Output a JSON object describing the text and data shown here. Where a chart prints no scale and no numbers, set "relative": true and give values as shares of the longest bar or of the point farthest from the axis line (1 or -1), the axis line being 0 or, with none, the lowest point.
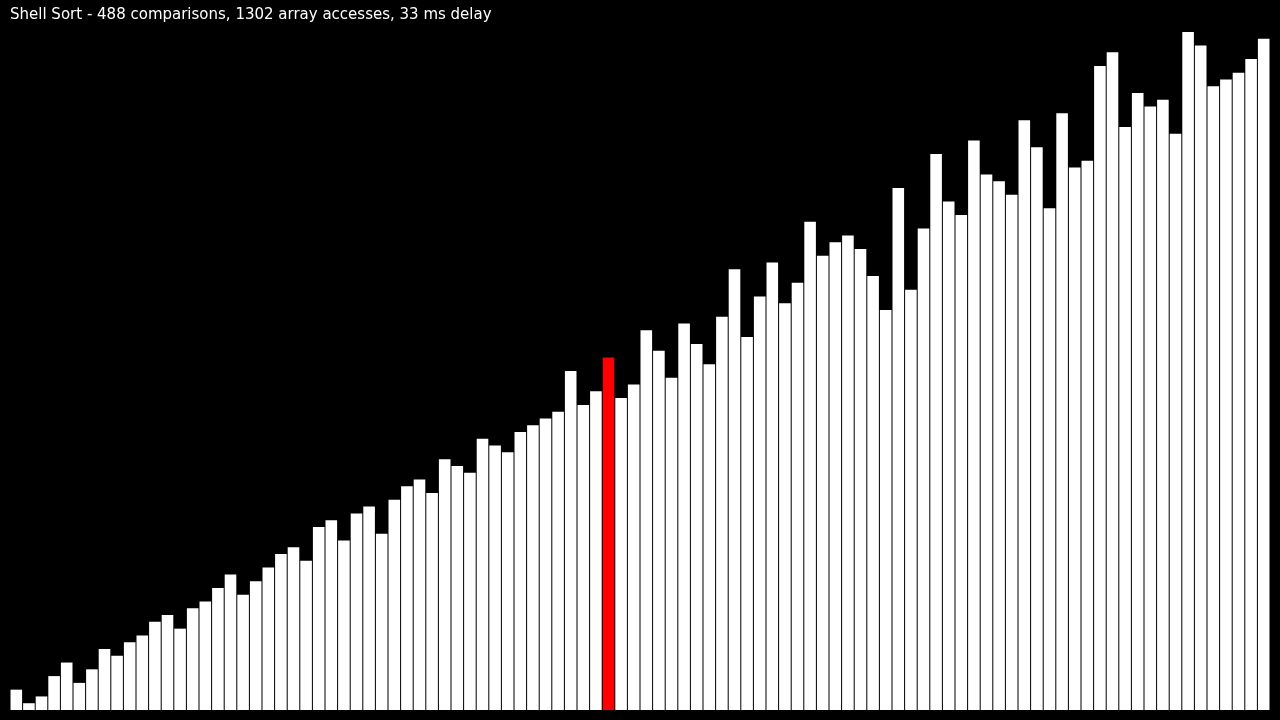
{
  "chart_data": {
    "type": "bar",
    "title": "Shell Sort - 488 comparisons, 1302 array accesses, 33 ms delay",
    "relative": true,
    "categories": [
      null,
      null,
      null,
      null,
      null,
      null,
      null,
      null,
      null,
      null,
      null,
      null,
      null,
      null,
      null,
      null,
      null,
      null,
      null,
      null,
      null,
      null,
      null,
      null,
      null,
      null,
      null,
      null,
      null,
      null,
      null,
      null,
      null,
      null,
      null,
      null,
      null,
      null,
      null,
      null,
      null,
      null,
      null,
      null,
      null,
      null,
      null,
      null,
      null,
      null,
      null,
      null,
      null,
      null,
      null,
      null,
      null,
      null,
      null,
      null,
      null,
      null,
      null,
      null,
      null,
      null,
      null,
      null,
      null,
      null,
      null,
      null,
      null,
      null,
      null,
      null,
      null,
      null,
      null,
      null,
      null,
      null,
      null,
      null,
      null,
      null,
      null,
      null,
      null,
      null,
      null,
      null,
      null,
      null,
      null,
      null,
      null,
      null,
      null,
      null
    ],
    "values": [
      0.03,
      0.01,
      0.02,
      0.05,
      0.07,
      0.04,
      0.06,
      0.09,
      0.08,
      0.1,
      0.11,
      0.13,
      0.14,
      0.12,
      0.15,
      0.16,
      0.18,
      0.2,
      0.17,
      0.19,
      0.21,
      0.23,
      0.24,
      0.22,
      0.27,
      0.28,
      0.25,
      0.29,
      0.3,
      0.26,
      0.31,
      0.33,
      0.34,
      0.32,
      0.37,
      0.36,
      0.35,
      0.4,
      0.39,
      0.38,
      0.41,
      0.42,
      0.43,
      0.44,
      0.5,
      0.45,
      0.47,
      0.52,
      0.46,
      0.48,
      0.56,
      0.53,
      0.49,
      0.57,
      0.54,
      0.51,
      0.58,
      0.65,
      0.55,
      0.61,
      0.66,
      0.6,
      0.63,
      0.72,
      0.67,
      0.69,
      0.7,
      0.68,
      0.64,
      0.59,
      0.77,
      0.62,
      0.71,
      0.82,
      0.75,
      0.73,
      0.84,
      0.79,
      0.78,
      0.76,
      0.87,
      0.83,
      0.74,
      0.88,
      0.8,
      0.81,
      0.95,
      0.97,
      0.86,
      0.91,
      0.89,
      0.9,
      0.85,
      1.0,
      0.98,
      0.92,
      0.93,
      0.94,
      0.96,
      0.99
    ],
    "colors": [
      "#ffffff",
      "#ffffff",
      "#ffffff",
      "#ffffff",
      "#ffffff",
      "#ffffff",
      "#ffffff",
      "#ffffff",
      "#ffffff",
      "#ffffff",
      "#ffffff",
      "#ffffff",
      "#ffffff",
      "#ffffff",
      "#ffffff",
      "#ffffff",
      "#ffffff",
      "#ffffff",
      "#ffffff",
      "#ffffff",
      "#ffffff",
      "#ffffff",
      "#ffffff",
      "#ffffff",
      "#ffffff",
      "#ffffff",
      "#ffffff",
      "#ffffff",
      "#ffffff",
      "#ffffff",
      "#ffffff",
      "#ffffff",
      "#ffffff",
      "#ffffff",
      "#ffffff",
      "#ffffff",
      "#ffffff",
      "#ffffff",
      "#ffffff",
      "#ffffff",
      "#ffffff",
      "#ffffff",
      "#ffffff",
      "#ffffff",
      "#ffffff",
      "#ffffff",
      "#ffffff",
      "#ff0000",
      "#ffffff",
      "#ffffff",
      "#ffffff",
      "#ffffff",
      "#ffffff",
      "#ffffff",
      "#ffffff",
      "#ffffff",
      "#ffffff",
      "#ffffff",
      "#ffffff",
      "#ffffff",
      "#ffffff",
      "#ffffff",
      "#ffffff",
      "#ffffff",
      "#ffffff",
      "#ffffff",
      "#ffffff",
      "#ffffff",
      "#ffffff",
      "#ffffff",
      "#ffffff",
      "#ffffff",
      "#ffffff",
      "#ffffff",
      "#ffffff",
      "#ffffff",
      "#ffffff",
      "#ffffff",
      "#ffffff",
      "#ffffff",
      "#ffffff",
      "#ffffff",
      "#ffffff",
      "#ffffff",
      "#ffffff",
      "#ffffff",
      "#ffffff",
      "#ffffff",
      "#ffffff",
      "#ffffff",
      "#ffffff",
      "#ffffff",
      "#ffffff",
      "#ffffff",
      "#ffffff",
      "#ffffff",
      "#ffffff",
      "#ffffff",
      "#ffffff",
      "#ffffff"
    ]
  }
}
